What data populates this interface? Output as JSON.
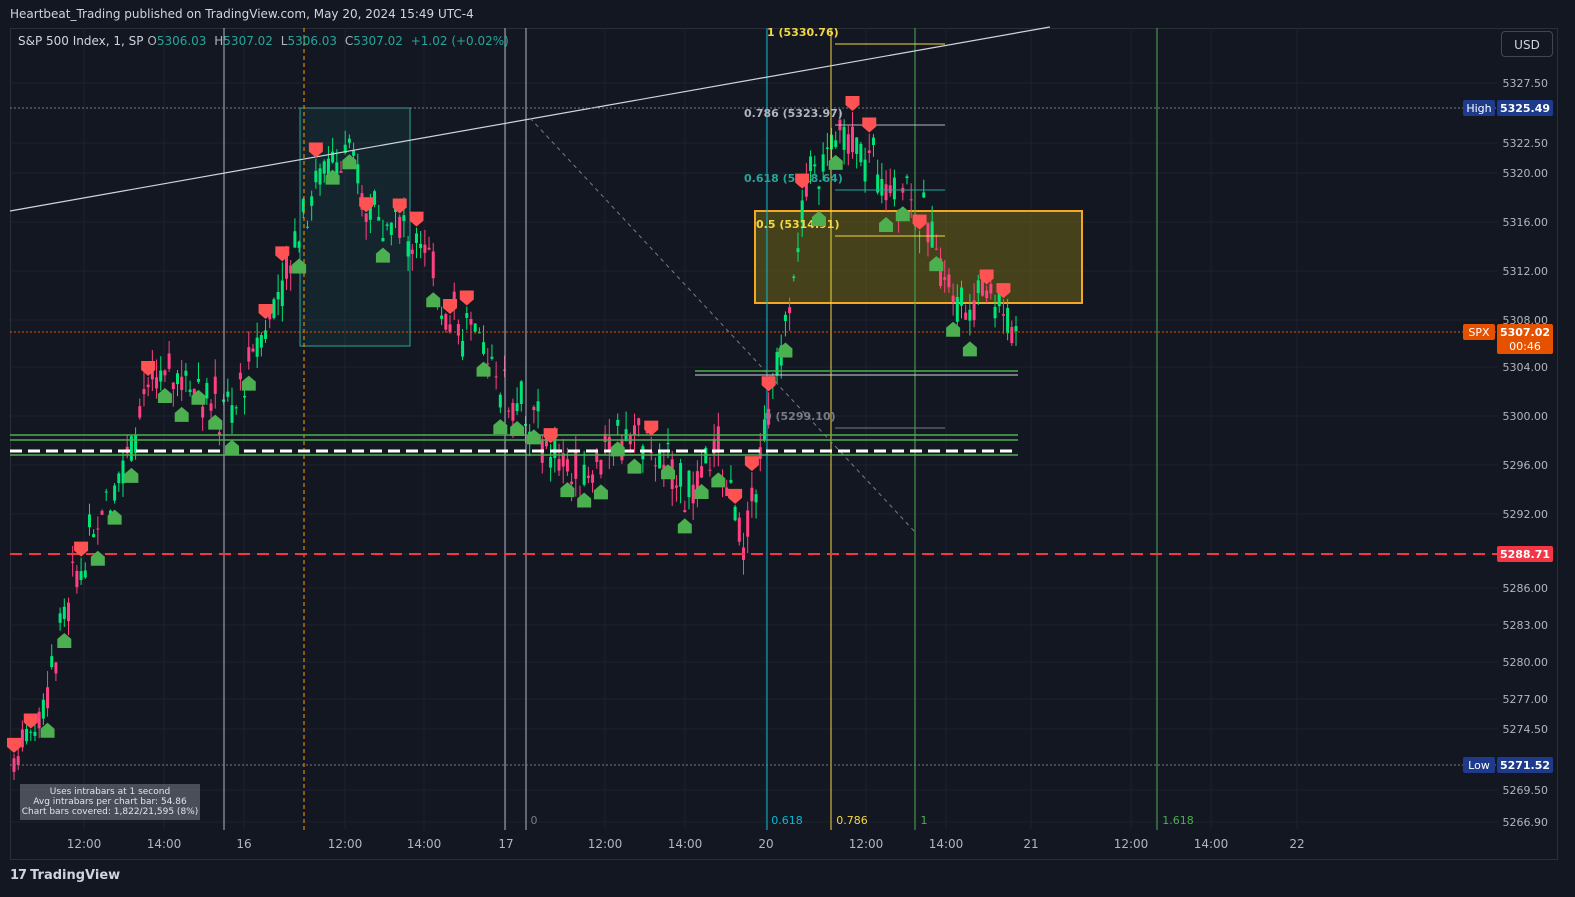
{
  "header": {
    "published": "Heartbeat_Trading published on TradingView.com, May 20, 2024 15:49 UTC-4"
  },
  "legend": {
    "symbol": "S&P 500 Index, 1, SP",
    "o_label": "O",
    "o": "5306.03",
    "h_label": "H",
    "h": "5307.02",
    "l_label": "L",
    "l": "5306.03",
    "c_label": "C",
    "c": "5307.02",
    "change": "+1.02 (+0.02%)"
  },
  "currency": "USD",
  "brand": "TradingView",
  "info_box": {
    "line1": "Uses intrabars at 1 second",
    "line2": "Avg intrabars per chart bar: 54.86",
    "line3": "Chart bars covered: 1,822/21,595 (8%)"
  },
  "chart_data": {
    "type": "candlestick",
    "y_ticks": [
      "5327.50",
      "5322.50",
      "5320.00",
      "5316.00",
      "5312.00",
      "5308.00",
      "5304.00",
      "5300.00",
      "5296.00",
      "5292.00",
      "5288.00",
      "5286.00",
      "5283.00",
      "5280.00",
      "5277.00",
      "5274.50",
      "5269.50",
      "5266.90"
    ],
    "x_ticks": [
      "12:00",
      "14:00",
      "16",
      "12:00",
      "14:00",
      "17",
      "12:00",
      "14:00",
      "20",
      "12:00",
      "14:00",
      "21",
      "12:00",
      "14:00",
      "22"
    ],
    "price_labels": [
      {
        "label": "High",
        "value": "5325.49",
        "color": "#1e3a8a"
      },
      {
        "label": "SPX",
        "value": "5307.02",
        "sub": "00:46",
        "color": "#e65100"
      },
      {
        "label": "",
        "value": "5288.71",
        "color": "#f23645"
      },
      {
        "label": "Low",
        "value": "5271.52",
        "color": "#1e3a8a"
      }
    ],
    "fib_levels": [
      {
        "ratio": "1",
        "value": "5330.76",
        "text": "1 (5330.76)"
      },
      {
        "ratio": "0.786",
        "value": "5323.97",
        "text": "0.786 (5323.97)"
      },
      {
        "ratio": "0.618",
        "value": "",
        "text": "0.618 (5318.64)"
      },
      {
        "ratio": "0.5",
        "value": "5314.91",
        "text": "0.5 (5314.91)"
      },
      {
        "ratio": "0",
        "value": "5299.10",
        "text": "0 (5299.10)"
      }
    ],
    "time_fibs": [
      "0",
      "0.618",
      "0.786",
      "1",
      "1.618"
    ],
    "series": [
      {
        "name": "price",
        "values": [
          5272,
          5276,
          5285,
          5291,
          5296,
          5302,
          5304,
          5302,
          5300,
          5306,
          5312,
          5319,
          5322,
          5318,
          5316,
          5314,
          5309,
          5306,
          5303,
          5300,
          5297,
          5295,
          5298,
          5299,
          5296,
          5294,
          5297,
          5290,
          5302,
          5316,
          5323,
          5322,
          5320,
          5319,
          5314,
          5309,
          5311,
          5307
        ]
      }
    ]
  }
}
